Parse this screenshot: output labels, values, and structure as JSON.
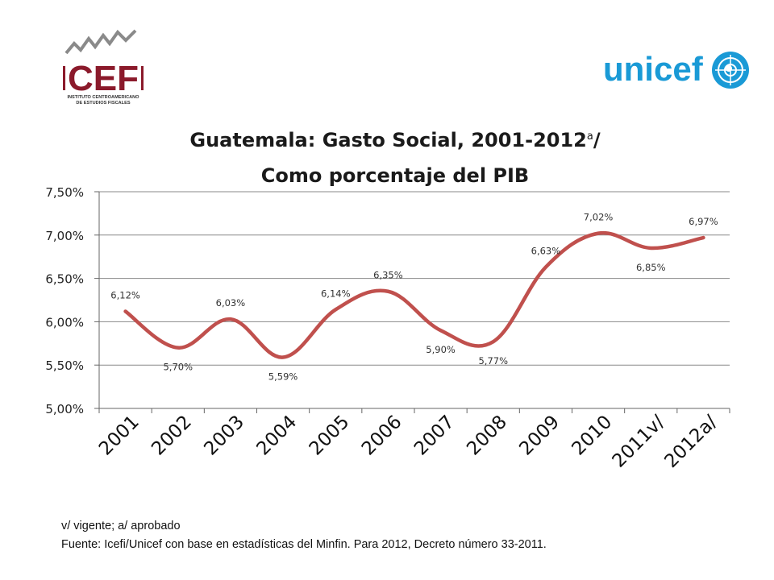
{
  "logos": {
    "icefi": {
      "name": "ICEFI",
      "subtitle_line1": "INSTITUTO CENTROAMERICANO",
      "subtitle_line2": "DE ESTUDIOS FISCALES",
      "color": "#8b1a2b"
    },
    "unicef": {
      "name": "unicef",
      "color": "#1a9ad6"
    }
  },
  "chart_data": {
    "type": "line",
    "title": "Guatemala: Gasto Social, 2001-2012",
    "title_superscript": "a",
    "title_suffix": "/",
    "subtitle": "Como porcentaje del PIB",
    "categories": [
      "2001",
      "2002",
      "2003",
      "2004",
      "2005",
      "2006",
      "2007",
      "2008",
      "2009",
      "2010",
      "2011v/",
      "2012a/"
    ],
    "series": [
      {
        "values": [
          6.12,
          5.7,
          6.03,
          5.59,
          6.14,
          6.35,
          5.9,
          5.77,
          6.63,
          7.02,
          6.85,
          6.97
        ],
        "data_labels": [
          "6,12%",
          "5,70%",
          "6,03%",
          "5,59%",
          "6,14%",
          "6,35%",
          "5,90%",
          "5,77%",
          "6,63%",
          "7,02%",
          "6,85%",
          "6,97%"
        ],
        "color": "#c0504d"
      }
    ],
    "ylim": [
      5.0,
      7.5
    ],
    "yticks": [
      "7,50%",
      "7,00%",
      "6,50%",
      "6,00%",
      "5,50%",
      "5,00%"
    ],
    "ytick_values": [
      7.5,
      7.0,
      6.5,
      6.0,
      5.5,
      5.0
    ],
    "grid": true,
    "smooth": true
  },
  "footnotes": {
    "note": "v/ vigente; a/ aprobado",
    "source": "Fuente: Icefi/Unicef con base en estadísticas del Minfin. Para 2012, Decreto número 33-2011."
  }
}
